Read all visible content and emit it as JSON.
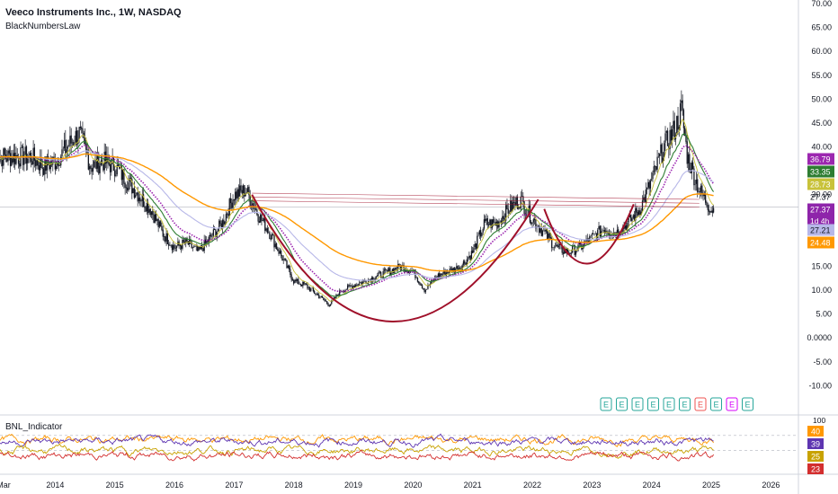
{
  "header": {
    "title": "Veeco Instruments Inc., 1W, NASDAQ",
    "script_name": "BlackNumbersLaw"
  },
  "colors": {
    "up": "#26a69a",
    "down": "#ef5350",
    "candle": "#131722",
    "purple": "#9c27b0",
    "green": "#2e7d32",
    "gold": "#c8c23a",
    "orange": "#ff9800",
    "lavender": "#b7b7e8",
    "cup": "#a0102a",
    "magenta_tag": "#8e24aa",
    "grid": "#e6e8ee"
  },
  "chart_data": [
    {
      "type": "candlestick",
      "title": "Veeco Instruments Inc., 1W, NASDAQ",
      "indicator": "BlackNumbersLaw",
      "x_ticks": [
        "Mar",
        "2014",
        "2015",
        "2016",
        "2017",
        "2018",
        "2019",
        "2020",
        "2021",
        "2022",
        "2023",
        "2024",
        "2025",
        "2026"
      ],
      "y_ticks": [
        "70.00",
        "65.00",
        "60.00",
        "55.00",
        "50.00",
        "45.00",
        "40.00",
        "35.00",
        "30.00",
        "25.00",
        "20.00",
        "15.00",
        "10.00",
        "5.00",
        "0.0000",
        "-5.00",
        "-10.00"
      ],
      "ylim": [
        -12,
        70
      ],
      "price_series": {
        "x": [
          2013.6,
          2013.8,
          2014.0,
          2014.2,
          2014.4,
          2014.6,
          2014.8,
          2015.0,
          2015.2,
          2015.4,
          2015.6,
          2015.8,
          2016.0,
          2016.2,
          2016.4,
          2016.6,
          2016.8,
          2017.0,
          2017.2,
          2017.4,
          2017.6,
          2017.8,
          2018.0,
          2018.2,
          2018.4,
          2018.6,
          2018.8,
          2019.0,
          2019.2,
          2019.4,
          2019.6,
          2019.8,
          2020.0,
          2020.2,
          2020.4,
          2020.6,
          2020.8,
          2021.0,
          2021.2,
          2021.4,
          2021.6,
          2021.8,
          2022.0,
          2022.2,
          2022.4,
          2022.6,
          2022.8,
          2023.0,
          2023.2,
          2023.4,
          2023.6,
          2023.8,
          2024.0,
          2024.2,
          2024.4,
          2024.5,
          2024.6,
          2024.8,
          2025.0
        ],
        "close": [
          38,
          36,
          37,
          40,
          43,
          36,
          37,
          36,
          33,
          30,
          27,
          22,
          19,
          20,
          18,
          21,
          24,
          30,
          31,
          26,
          22,
          17,
          12,
          11,
          9,
          7,
          10,
          11,
          12,
          13,
          14,
          15,
          14,
          10,
          13,
          14,
          15,
          18,
          24,
          24,
          27,
          29,
          25,
          22,
          19,
          18,
          19,
          21,
          23,
          22,
          24,
          27,
          33,
          40,
          44,
          48,
          38,
          31,
          27
        ]
      },
      "series": [
        {
          "name": "",
          "color": "#9c27b0",
          "last": 36.79
        },
        {
          "name": "",
          "color": "#2e7d32",
          "last": 33.35
        },
        {
          "name": "",
          "color": "#c8c23a",
          "last": 28.73
        },
        {
          "name": "",
          "color": "#b7b7e8",
          "last": 27.21
        },
        {
          "name": "",
          "color": "#ff9800",
          "last": 24.48
        }
      ],
      "price_tags": [
        {
          "value": "36.79",
          "color": "#9c27b0"
        },
        {
          "value": "33.35",
          "color": "#2e7d32"
        },
        {
          "value": "28.73",
          "color": "#c8c23a"
        },
        {
          "value": "27.37",
          "color": "none"
        },
        {
          "value": "27.37",
          "color": "#8e24aa",
          "sub": "1d 4h"
        },
        {
          "value": "27.21",
          "color": "#b7b7e8"
        },
        {
          "value": "24.48",
          "color": "#ff9800"
        }
      ],
      "earnings_markers": [
        "E",
        "E",
        "E",
        "E",
        "E",
        "E",
        "E",
        "E",
        "E",
        "E"
      ],
      "resistance": {
        "from": [
          2017.3,
          29.5
        ],
        "to": [
          2024.8,
          28.2
        ]
      },
      "cups": [
        {
          "start": [
            2017.3,
            30
          ],
          "bottom": [
            2019.6,
            3
          ],
          "end": [
            2022.1,
            29
          ]
        },
        {
          "start": [
            2022.2,
            27
          ],
          "bottom": [
            2022.9,
            15
          ],
          "end": [
            2023.7,
            28
          ]
        }
      ]
    },
    {
      "type": "line",
      "title": "BNL_Indicator",
      "y_ticks": [
        "100"
      ],
      "ylim": [
        0,
        100
      ],
      "series": [
        {
          "name": "",
          "color": "#ff9800",
          "last": 40
        },
        {
          "name": "",
          "color": "#5e35b1",
          "last": 39
        },
        {
          "name": "",
          "color": "#c8a200",
          "last": 25
        },
        {
          "name": "",
          "color": "#d32f2f",
          "last": 23
        }
      ],
      "tags": [
        "40",
        "39",
        "25",
        "23"
      ]
    }
  ]
}
